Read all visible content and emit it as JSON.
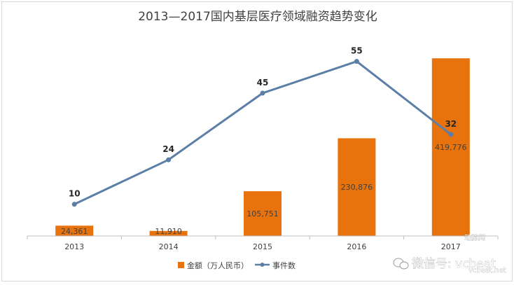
{
  "chart_data": {
    "type": "bar",
    "title": "2013—2017国内基层医疗领域融资趋势变化",
    "categories": [
      "2013",
      "2014",
      "2015",
      "2016",
      "2017"
    ],
    "series": [
      {
        "name": "金额（万人民币）",
        "type": "bar",
        "axis": "left",
        "values": [
          24361,
          11910,
          105751,
          230876,
          419776
        ],
        "labels": [
          "24,361",
          "11,910",
          "105,751",
          "230,876",
          "419,776"
        ],
        "color": "#e8730c"
      },
      {
        "name": "事件数",
        "type": "line",
        "axis": "right",
        "values": [
          10,
          24,
          45,
          55,
          32
        ],
        "labels": [
          "10",
          "24",
          "45",
          "55",
          "32"
        ],
        "color": "#5b7fa6"
      }
    ],
    "ylim": [
      0,
      450000
    ],
    "y2lim": [
      0,
      60
    ],
    "grid": false,
    "legend_position": "bottom"
  },
  "watermark": {
    "text": "微信号: vcbeat",
    "logo_text": "动脉网",
    "url_text": "vcbeat.net"
  }
}
